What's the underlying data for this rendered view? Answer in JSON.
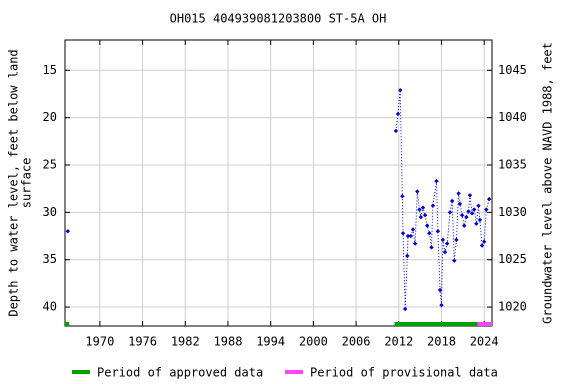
{
  "chart_data": {
    "type": "scatter",
    "title": "OH015 404939081203800 ST-5A OH",
    "ylabel": [
      "Depth to water level, feet below land",
      "surface"
    ],
    "y2label": "Groundwater level above NAVD 1988, feet",
    "xlim": [
      1965.1,
      2025.1
    ],
    "xticks": [
      1970,
      1976,
      1982,
      1988,
      1994,
      2000,
      2006,
      2012,
      2018,
      2024
    ],
    "ylim": [
      11.8,
      42
    ],
    "y_inverted": true,
    "yticks": [
      15,
      20,
      25,
      30,
      35,
      40
    ],
    "y2lim": [
      1048.2,
      1018
    ],
    "y2ticks": [
      1020,
      1025,
      1030,
      1035,
      1040,
      1045
    ],
    "grid": true,
    "color": "#0000cc",
    "series": [
      {
        "line": false,
        "x": [
          1965.5
        ],
        "values": [
          32
        ]
      },
      {
        "line": true,
        "x": [
          2011.6,
          2011.9,
          2012.2,
          2012.5,
          2012.6,
          2012.9,
          2013.2,
          2013.3,
          2013.7,
          2014.0,
          2014.3,
          2014.6,
          2014.9,
          2015.1,
          2015.4,
          2015.7,
          2016.0,
          2016.3,
          2016.6,
          2016.8,
          2017.3,
          2017.5,
          2017.8,
          2018.0,
          2018.2,
          2018.5,
          2018.8,
          2019.2,
          2019.5,
          2019.8,
          2020.1,
          2020.4,
          2020.6,
          2020.9,
          2021.2,
          2021.5,
          2021.8,
          2022.0,
          2022.3,
          2022.6,
          2022.9,
          2023.2,
          2023.4,
          2023.7,
          2024.0,
          2024.3,
          2024.7
        ],
        "values": [
          21.4,
          19.6,
          17.1,
          28.3,
          32.2,
          40.2,
          34.6,
          32.5,
          32.5,
          31.8,
          33.3,
          27.8,
          29.7,
          30.5,
          29.5,
          30.3,
          31.4,
          32.2,
          33.7,
          29.3,
          26.7,
          32.0,
          38.2,
          39.8,
          32.9,
          34.2,
          33.3,
          30.0,
          28.8,
          35.1,
          32.9,
          28.0,
          29.1,
          30.3,
          31.4,
          30.5,
          29.9,
          28.2,
          30.1,
          29.7,
          31.2,
          29.3,
          30.8,
          33.5,
          33.1,
          29.7,
          28.6
        ]
      }
    ],
    "periods": [
      {
        "name": "Period of approved data",
        "color": "#00a000",
        "ranges": [
          [
            1965.1,
            1965.7
          ],
          [
            2011.4,
            2023.1
          ]
        ]
      },
      {
        "name": "Period of provisional data",
        "color": "#ff44ff",
        "ranges": [
          [
            2023.1,
            2025.1
          ]
        ]
      }
    ]
  }
}
